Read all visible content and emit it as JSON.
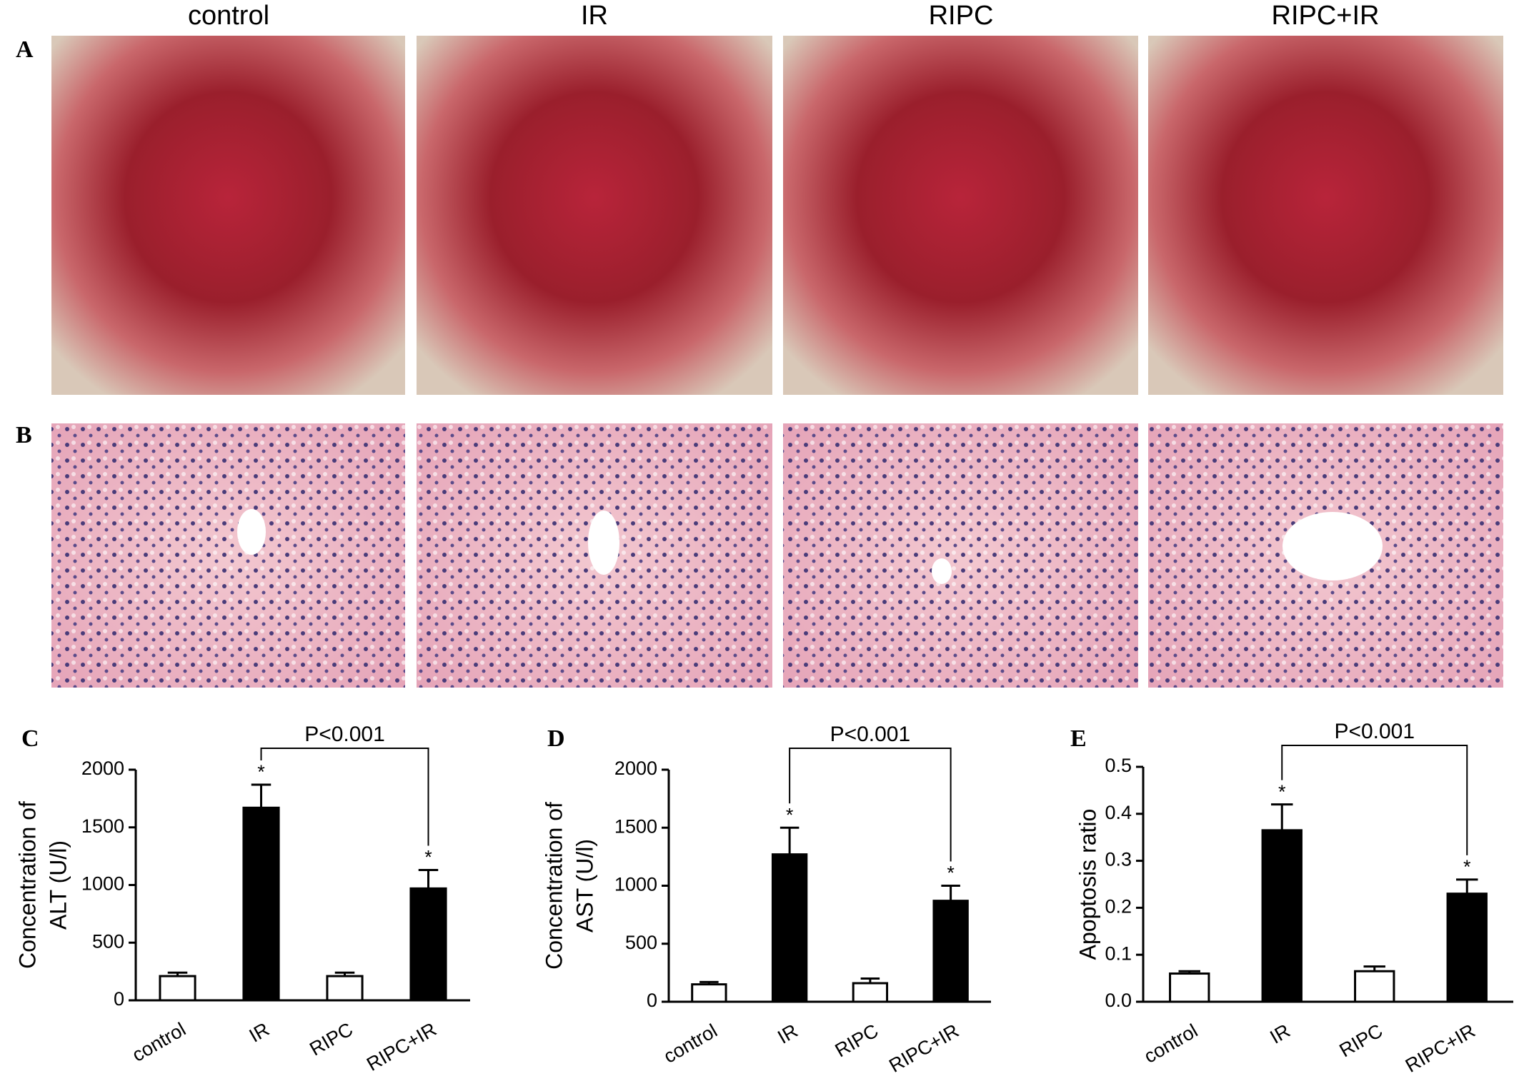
{
  "columns": [
    "control",
    "IR",
    "RIPC",
    "RIPC+IR"
  ],
  "panels": [
    "A",
    "B"
  ],
  "chart_data": [
    {
      "type": "bar",
      "panel_label": "C",
      "y_label": [
        "Concentration of",
        "ALT (U/l)"
      ],
      "categories": [
        "control",
        "IR",
        "RIPC",
        "RIPC+IR"
      ],
      "values": [
        210,
        1670,
        210,
        970
      ],
      "errors": [
        30,
        200,
        30,
        160
      ],
      "colors": [
        "#ffffff",
        "#000000",
        "#ffffff",
        "#000000"
      ],
      "star_labels": [
        null,
        "*",
        null,
        "*"
      ],
      "p_label": "P<0.001",
      "ylim": [
        0,
        2000
      ],
      "yticks": [
        0,
        500,
        1000,
        1500,
        2000
      ]
    },
    {
      "type": "bar",
      "panel_label": "D",
      "y_label": [
        "Concentration of",
        "AST (U/l)"
      ],
      "categories": [
        "control",
        "IR",
        "RIPC",
        "RIPC+IR"
      ],
      "values": [
        150,
        1270,
        160,
        870
      ],
      "errors": [
        20,
        230,
        40,
        130
      ],
      "colors": [
        "#ffffff",
        "#000000",
        "#ffffff",
        "#000000"
      ],
      "star_labels": [
        null,
        "*",
        null,
        "*"
      ],
      "p_label": "P<0.001",
      "ylim": [
        0,
        2000
      ],
      "yticks": [
        0,
        500,
        1000,
        1500,
        2000
      ]
    },
    {
      "type": "bar",
      "panel_label": "E",
      "y_label": [
        "Apoptosis ratio"
      ],
      "categories": [
        "control",
        "IR",
        "RIPC",
        "RIPC+IR"
      ],
      "values": [
        0.06,
        0.365,
        0.065,
        0.23
      ],
      "errors": [
        0.005,
        0.055,
        0.01,
        0.03
      ],
      "colors": [
        "#ffffff",
        "#000000",
        "#ffffff",
        "#000000"
      ],
      "star_labels": [
        null,
        "*",
        null,
        "*"
      ],
      "p_label": "P<0.001",
      "ylim": [
        0,
        0.5
      ],
      "yticks": [
        {
          "value": 0,
          "label": "0.0"
        },
        0.1,
        0.2,
        0.3,
        0.4,
        0.5
      ]
    }
  ]
}
